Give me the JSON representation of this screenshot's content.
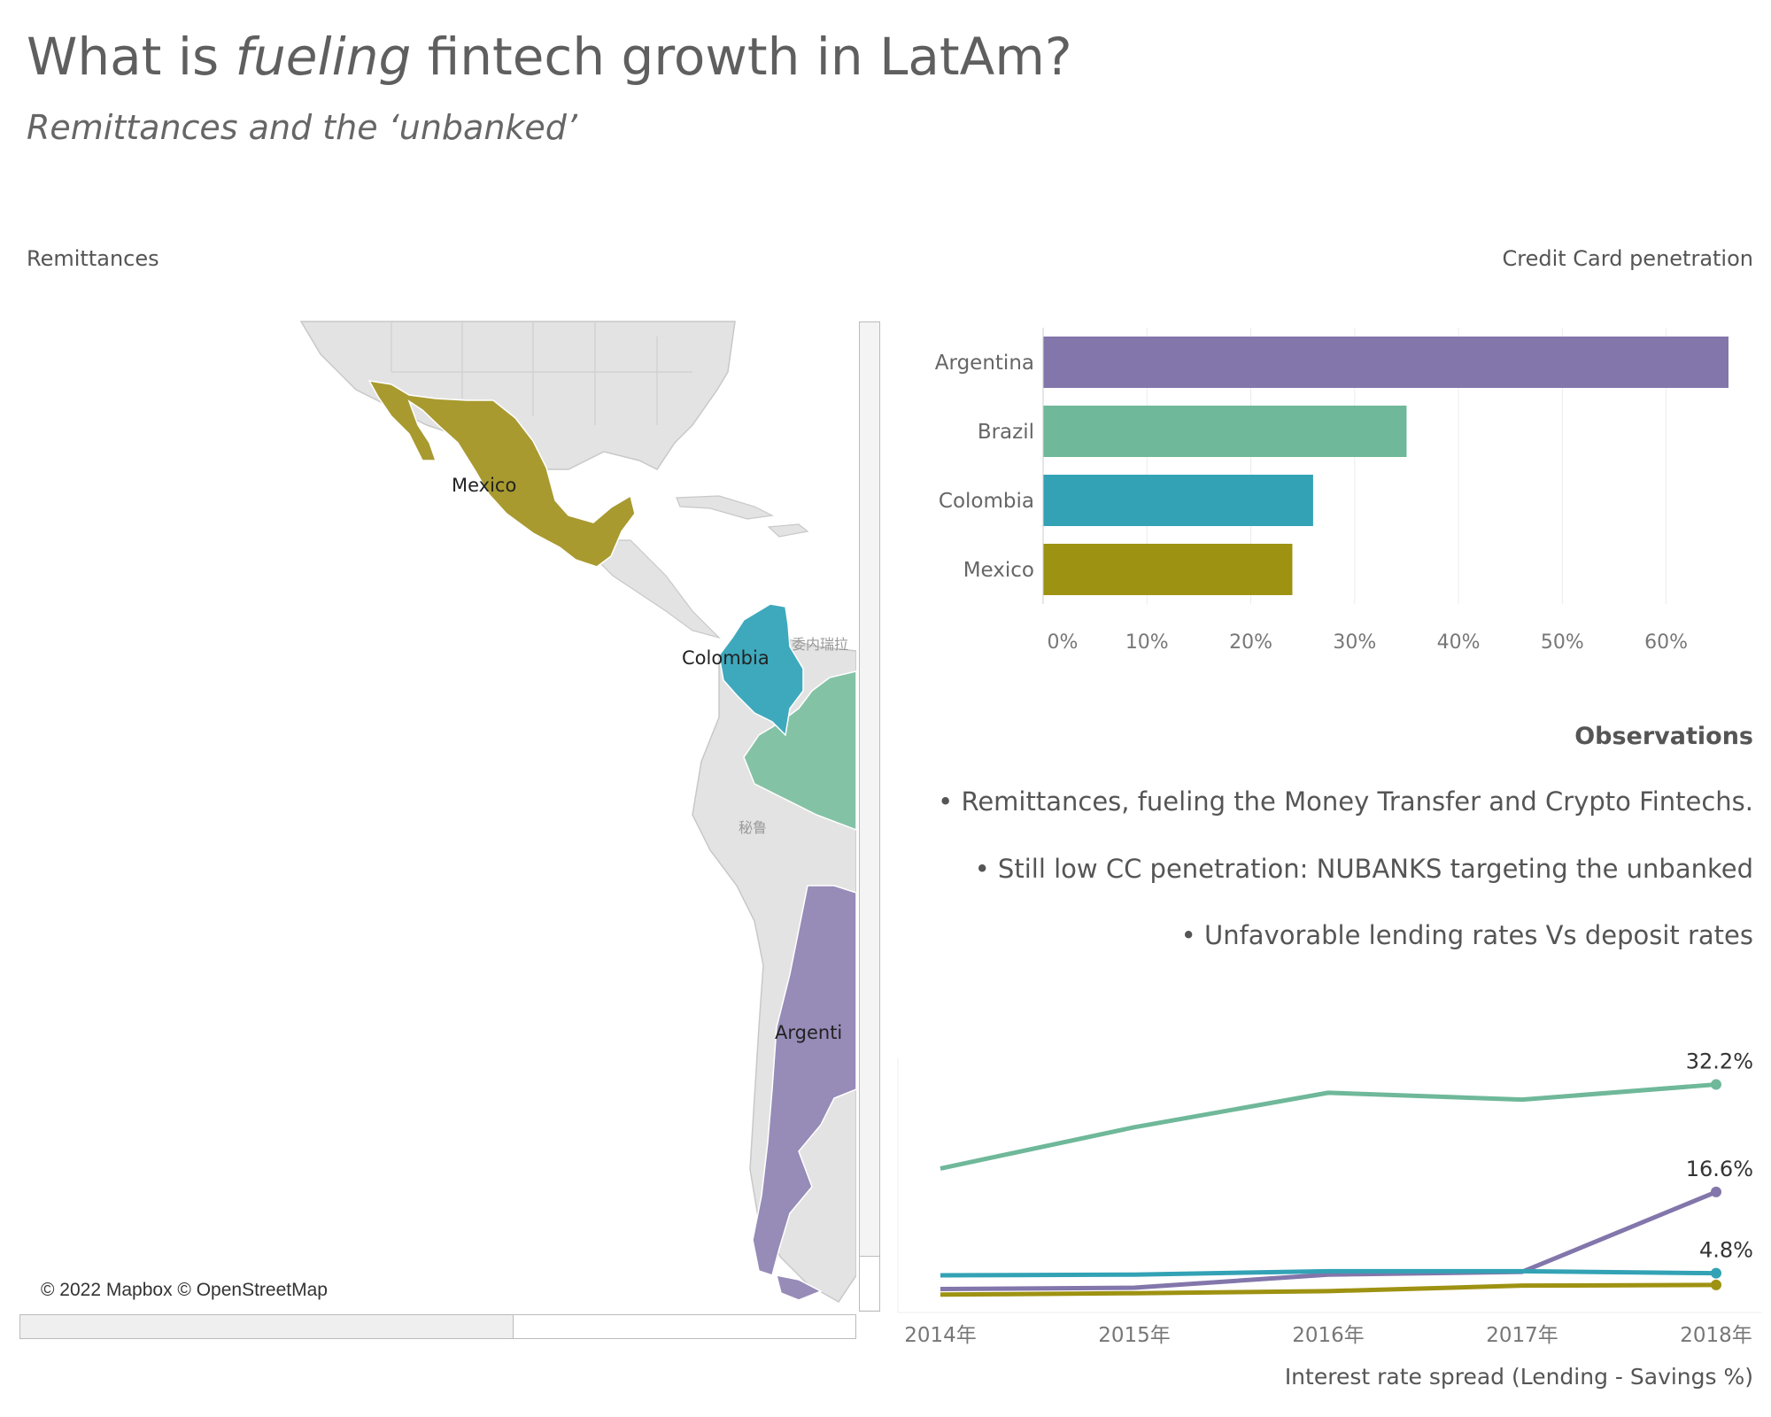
{
  "header": {
    "title_part1": "What is ",
    "title_em": "fueling",
    "title_part2": " fintech growth in LatAm?",
    "subtitle": "Remittances and  the ‘unbanked’"
  },
  "map": {
    "title": "Remittances",
    "attribution": "© 2022 Mapbox © OpenStreetMap",
    "labels": [
      "Mexico",
      "Colombia",
      "Argenti",
      "委内瑞拉",
      "秘鲁"
    ],
    "colors": {
      "Mexico": "#a89a2f",
      "Colombia": "#3ea9bd",
      "Brazil": "#84c2a5",
      "Argentina": "#978bb8",
      "land": "#e3e3e3",
      "border": "#c8c8c8"
    }
  },
  "credit_card": {
    "title": "Credit Card penetration"
  },
  "observations": {
    "title": "Observations",
    "items": [
      "• Remittances, fueling the Money Transfer and Crypto Fintechs.",
      "• Still low CC penetration: NUBANKS targeting the unbanked",
      "• Unfavorable lending rates Vs deposit rates"
    ]
  },
  "spread": {
    "title": "Interest rate spread (Lending - Savings %)"
  },
  "chart_data": [
    {
      "type": "bar",
      "orientation": "horizontal",
      "title": "Credit Card penetration",
      "categories": [
        "Argentina",
        "Brazil",
        "Colombia",
        "Mexico"
      ],
      "values": [
        66,
        35,
        26,
        24
      ],
      "colors": [
        "#8276ab",
        "#6fb89a",
        "#33a2b5",
        "#9e9212"
      ],
      "x_ticks": [
        "0%",
        "10%",
        "20%",
        "30%",
        "40%",
        "50%",
        "60%"
      ],
      "xlim": [
        0,
        66
      ],
      "grid": true
    },
    {
      "type": "line",
      "title": "Interest rate spread (Lending - Savings %)",
      "x": [
        "2014年",
        "2015年",
        "2016年",
        "2017年",
        "2018年"
      ],
      "series": [
        {
          "values": [
            20.0,
            26.0,
            31.0,
            30.0,
            32.2
          ],
          "color": "#6fb89a",
          "end_label": "32.2%"
        },
        {
          "values": [
            2.5,
            2.7,
            4.6,
            5.0,
            16.6
          ],
          "color": "#8276ab",
          "end_label": "16.6%"
        },
        {
          "values": [
            4.5,
            4.6,
            5.1,
            5.1,
            4.8
          ],
          "color": "#33a2b5",
          "end_label": "4.8%"
        },
        {
          "values": [
            1.7,
            1.9,
            2.2,
            3.0,
            3.1
          ],
          "color": "#9e9212"
        }
      ],
      "ylim": [
        0,
        36
      ],
      "grid": false
    }
  ]
}
